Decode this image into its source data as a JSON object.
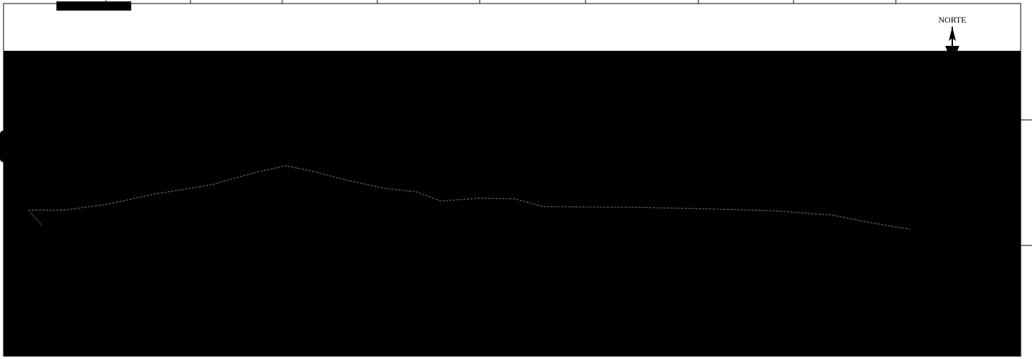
{
  "map": {
    "north_label": "NORTE"
  }
}
